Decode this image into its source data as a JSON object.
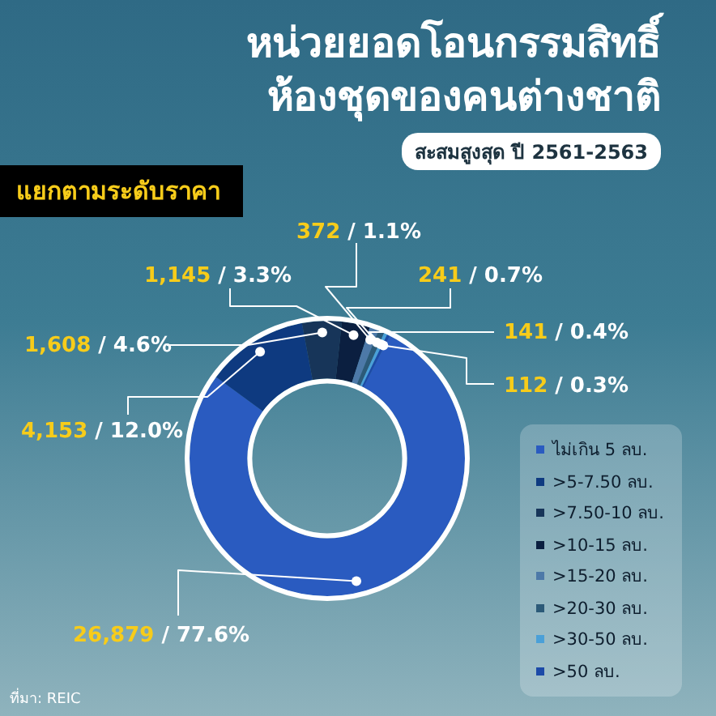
{
  "chart_data": {
    "type": "donut",
    "title": "หน่วยยอดโอนกรรมสิทธิ์\nห้องชุดของคนต่างชาติ",
    "subtitle": "สะสมสูงสุด ปี 2561-2563",
    "annotations": [
      "แยกตามระดับราคา",
      "ที่มา: REIC"
    ],
    "categories": [
      "ไม่เกิน 5 ลบ.",
      ">5-7.50 ลบ.",
      ">7.50-10 ลบ.",
      ">10-15 ลบ.",
      ">15-20 ลบ.",
      ">20-30 ลบ.",
      ">30-50 ลบ.",
      ">50 ลบ."
    ],
    "values": [
      26879,
      4153,
      1608,
      1145,
      372,
      241,
      141,
      112
    ],
    "value_labels": [
      "26,879 / 77.6%",
      "4,153 / 12.0%",
      "1,608 / 4.6%",
      "1,145 / 3.3%",
      "372 / 1.1%",
      "241 / 0.7%",
      "141 / 0.4%",
      "112 / 0.3%"
    ],
    "colors": [
      "#2a5bc0",
      "#0e3a80",
      "#173559",
      "#0b1f40",
      "#4d79a8",
      "#2c5a78",
      "#4aa0d8",
      "#1c4aa8"
    ],
    "legend": "bottom right"
  }
}
